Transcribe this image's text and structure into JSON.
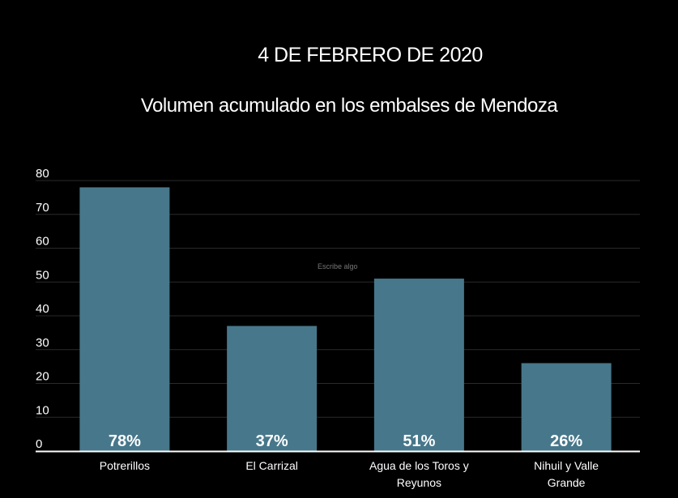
{
  "chart_data": {
    "type": "bar",
    "title": "4 DE FEBRERO DE 2020",
    "subtitle": "Volumen acumulado en los embalses de Mendoza",
    "annotation": "Escribe algo",
    "categories": [
      "Potrerillos",
      "El Carrizal",
      "Agua de los Toros y Reyunos",
      "Nihuil y Valle Grande"
    ],
    "values": [
      78,
      37,
      51,
      26
    ],
    "data_labels": [
      "78%",
      "37%",
      "51%",
      "26%"
    ],
    "xlabel": "",
    "ylabel": "",
    "ylim": [
      0,
      80
    ],
    "yticks": [
      0,
      10,
      20,
      30,
      40,
      50,
      60,
      70,
      80
    ],
    "grid": true,
    "bar_color": "#47778a",
    "grid_color": "#2a2a2a"
  }
}
